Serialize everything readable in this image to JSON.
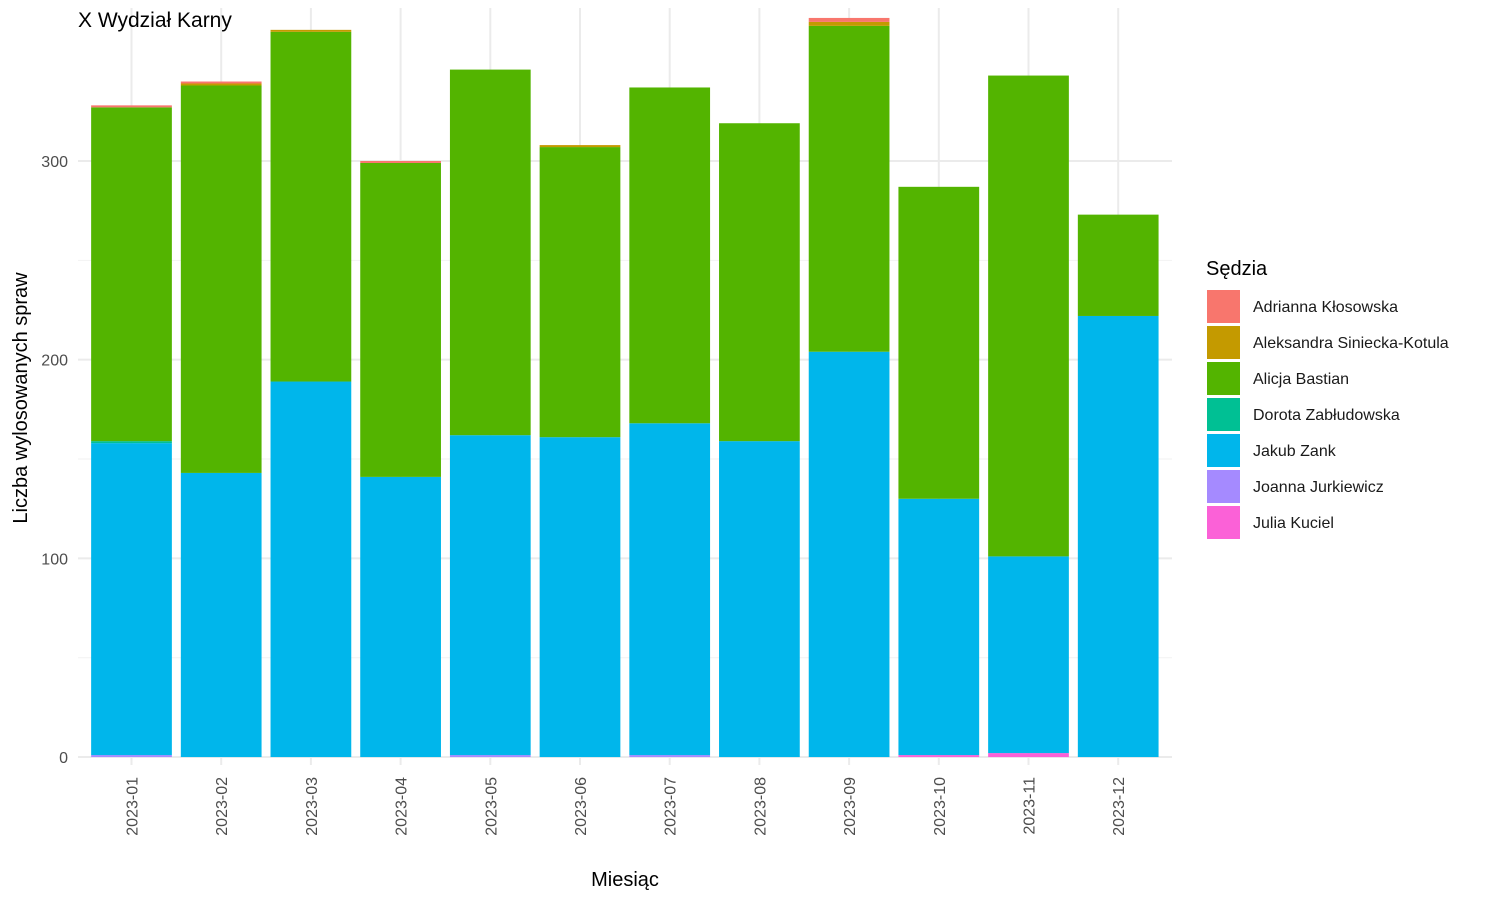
{
  "chart_data": {
    "type": "bar",
    "stacked": true,
    "title": "X Wydział Karny",
    "xlabel": "Miesiąc",
    "ylabel": "Liczba wylosowanych spraw",
    "ylim": [
      -4,
      377
    ],
    "yticks": [
      0,
      100,
      200,
      300
    ],
    "grid": true,
    "legend_title": "Sędzia",
    "legend_position": "right",
    "categories": [
      "2023-01",
      "2023-02",
      "2023-03",
      "2023-04",
      "2023-05",
      "2023-06",
      "2023-07",
      "2023-08",
      "2023-09",
      "2023-10",
      "2023-11",
      "2023-12"
    ],
    "series": [
      {
        "name": "Adrianna Kłosowska",
        "color": "#F8766D",
        "values": [
          1,
          1,
          0,
          1,
          0,
          0,
          0,
          0,
          2,
          0,
          0,
          0
        ]
      },
      {
        "name": "Aleksandra Siniecka-Kotula",
        "color": "#C49A00",
        "values": [
          0,
          1,
          1,
          0,
          0,
          1,
          0,
          0,
          2,
          0,
          0,
          0
        ]
      },
      {
        "name": "Alicja Bastian",
        "color": "#53B400",
        "values": [
          168,
          195,
          176,
          158,
          184,
          146,
          169,
          160,
          164,
          157,
          242,
          51
        ]
      },
      {
        "name": "Dorota Zabłudowska",
        "color": "#00C094",
        "values": [
          1,
          0,
          0,
          0,
          0,
          0,
          0,
          0,
          0,
          0,
          0,
          0
        ]
      },
      {
        "name": "Jakub Zank",
        "color": "#00B6EB",
        "values": [
          157,
          143,
          189,
          141,
          161,
          161,
          167,
          159,
          204,
          129,
          99,
          222
        ]
      },
      {
        "name": "Joanna Jurkiewicz",
        "color": "#A58AFF",
        "values": [
          1,
          0,
          0,
          0,
          1,
          0,
          1,
          0,
          0,
          0,
          0,
          0
        ]
      },
      {
        "name": "Julia Kuciel",
        "color": "#FB61D7",
        "values": [
          0,
          0,
          0,
          0,
          0,
          0,
          0,
          0,
          0,
          1,
          2,
          0
        ]
      }
    ]
  }
}
